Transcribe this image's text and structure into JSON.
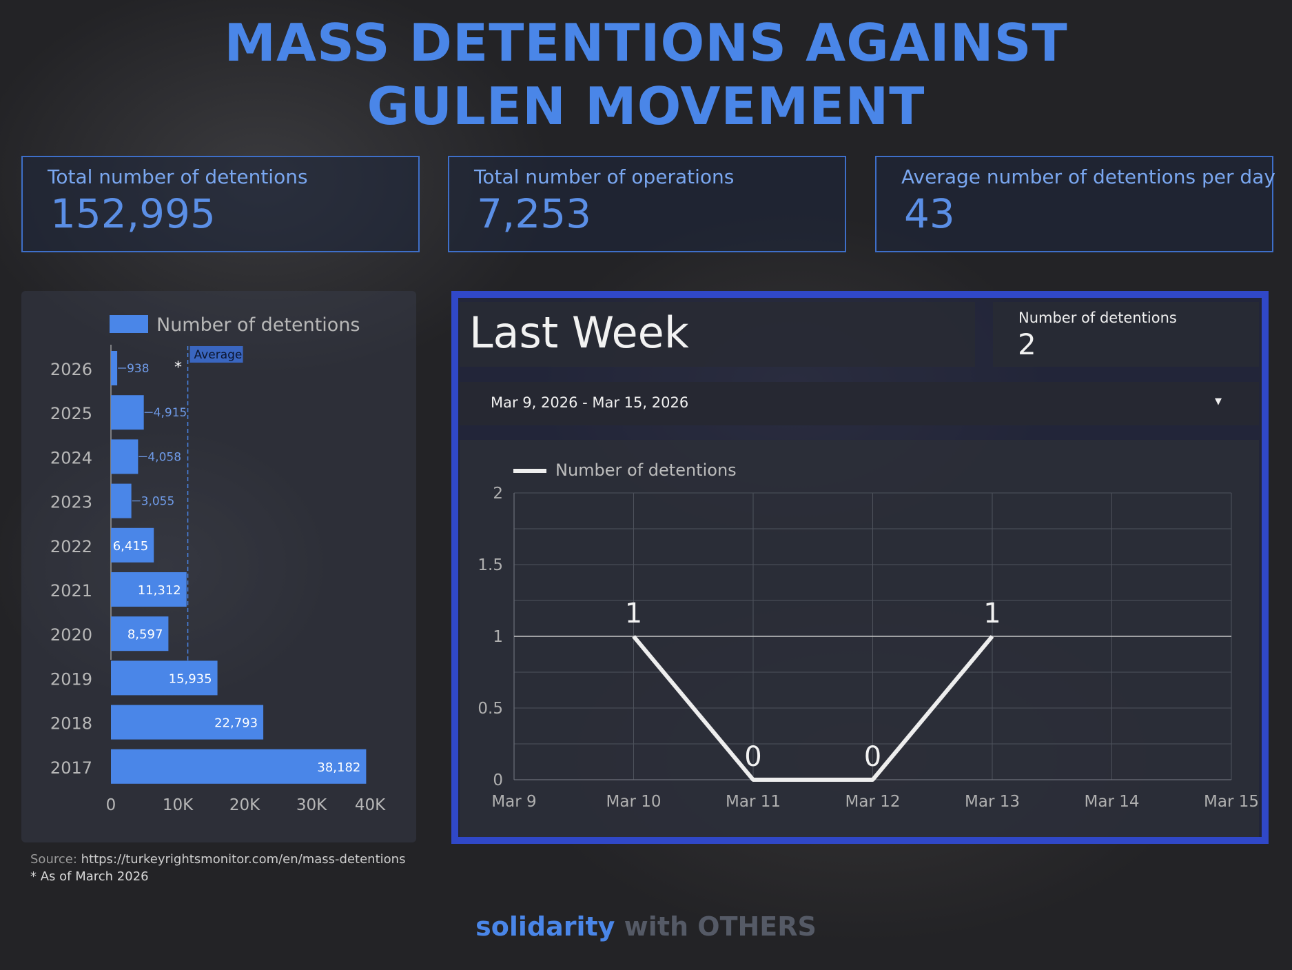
{
  "title_line1": "MASS DETENTIONS AGAINST",
  "title_line2": "GULEN MOVEMENT",
  "kpis": [
    {
      "label": "Total number of detentions",
      "value": "152,995"
    },
    {
      "label": "Total number of operations",
      "value": "7,253"
    },
    {
      "label": "Average number of detentions per day",
      "value": "43"
    }
  ],
  "source_label": "Source:",
  "source_url": " https://turkeyrightsmonitor.com/en/mass-detentions",
  "footnote": "* As of March 2026",
  "last_week": {
    "title": "Last Week",
    "metric_label": "Number of detentions",
    "metric_value": "2",
    "date_range": "Mar 9, 2026 - Mar 15, 2026"
  },
  "brand_part1": "solidarity",
  "brand_part2": " with OTHERS",
  "colors": {
    "accent": "#4a86e8",
    "frame": "#3048c8",
    "line": "#eeeeee"
  },
  "chart_data": [
    {
      "type": "bar",
      "orientation": "horizontal",
      "legend": "Number of detentions",
      "categories": [
        "2026",
        "2025",
        "2024",
        "2023",
        "2022",
        "2021",
        "2020",
        "2019",
        "2018",
        "2017"
      ],
      "values": [
        938,
        4915,
        4058,
        3055,
        6415,
        11312,
        8597,
        15935,
        22793,
        38182
      ],
      "value_labels": [
        "938",
        "4,915",
        "4,058",
        "3,055",
        "6,415",
        "11,312",
        "8,597",
        "15,935",
        "22,793",
        "38,182"
      ],
      "annotations": {
        "2026": "*"
      },
      "reference_line": {
        "label": "Average",
        "value": 11500
      },
      "xlim": [
        0,
        40000
      ],
      "xticks": [
        "0",
        "10K",
        "20K",
        "30K",
        "40K"
      ],
      "color": "#4a86e8"
    },
    {
      "type": "line",
      "legend": "Number of detentions",
      "x": [
        "Mar 9",
        "Mar 10",
        "Mar 11",
        "Mar 12",
        "Mar 13",
        "Mar 14",
        "Mar 15"
      ],
      "values": [
        null,
        1,
        0,
        0,
        1,
        null,
        null
      ],
      "ylim": [
        0,
        2
      ],
      "yticks": [
        "0",
        "0.5",
        "1",
        "1.5",
        "2"
      ],
      "reference_line": 1,
      "grid": true,
      "color": "#eeeeee"
    }
  ]
}
